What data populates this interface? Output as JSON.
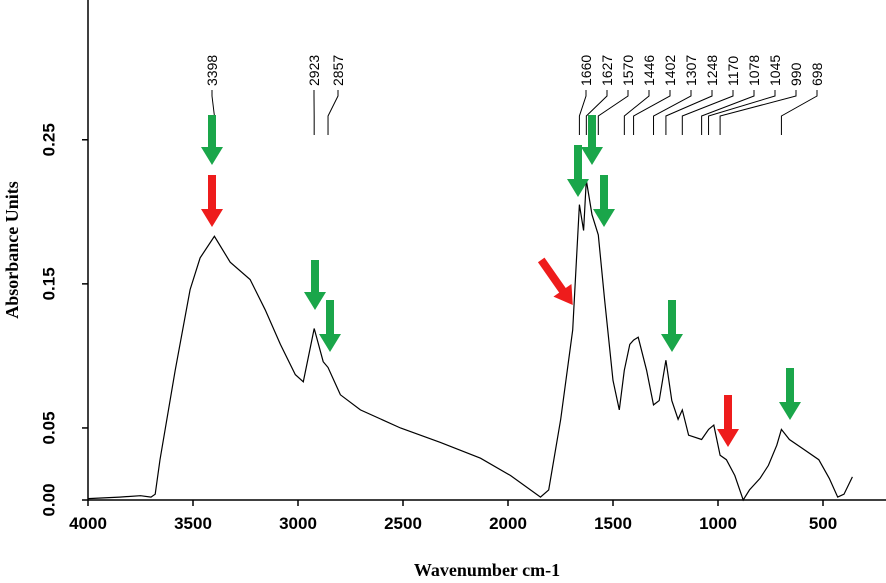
{
  "chart_data": {
    "type": "line",
    "xlabel": "Wavenumber cm-1",
    "ylabel": "Absorbance Units",
    "x": [
      4000,
      3850,
      3750,
      3700,
      3680,
      3657,
      3585,
      3514,
      3466,
      3398,
      3323,
      3228,
      3156,
      3084,
      3013,
      2975,
      2923,
      2880,
      2857,
      2798,
      2703,
      2512,
      2322,
      2131,
      1988,
      1845,
      1806,
      1749,
      1692,
      1660,
      1640,
      1627,
      1600,
      1570,
      1540,
      1500,
      1470,
      1446,
      1420,
      1402,
      1380,
      1340,
      1307,
      1280,
      1248,
      1220,
      1190,
      1170,
      1140,
      1078,
      1045,
      1020,
      990,
      960,
      920,
      880,
      850,
      800,
      760,
      720,
      698,
      660,
      600,
      520,
      470,
      430,
      400,
      360
    ],
    "values": [
      0.001,
      0.002,
      0.003,
      0.002,
      0.004,
      0.028,
      0.09,
      0.146,
      0.168,
      0.183,
      0.165,
      0.153,
      0.132,
      0.108,
      0.087,
      0.082,
      0.119,
      0.096,
      0.092,
      0.073,
      0.0625,
      0.05,
      0.04,
      0.029,
      0.017,
      0.002,
      0.007,
      0.056,
      0.118,
      0.205,
      0.187,
      0.222,
      0.198,
      0.184,
      0.139,
      0.083,
      0.0625,
      0.09,
      0.108,
      0.111,
      0.113,
      0.09,
      0.066,
      0.069,
      0.097,
      0.069,
      0.056,
      0.0625,
      0.045,
      0.042,
      0.049,
      0.052,
      0.031,
      0.028,
      0.017,
      0.0,
      0.007,
      0.015,
      0.024,
      0.038,
      0.049,
      0.042,
      0.036,
      0.028,
      0.015,
      0.002,
      0.004,
      0.016
    ],
    "color": "#000000",
    "xlim": [
      4000,
      200
    ],
    "xticks": [
      4000,
      3500,
      3000,
      2500,
      2000,
      1500,
      1000,
      500
    ],
    "ylim": [
      0,
      0.347
    ],
    "yticks": [
      {
        "value": 0,
        "label": "0.00"
      },
      {
        "value": 0.05,
        "label": "0.05"
      },
      {
        "value": 0.15,
        "label": "0.15"
      },
      {
        "value": 0.25,
        "label": "0.25"
      }
    ],
    "peaks": [
      3398,
      2923,
      2857,
      1660,
      1627,
      1570,
      1446,
      1402,
      1307,
      1248,
      1170,
      1078,
      1045,
      990,
      698
    ]
  }
}
